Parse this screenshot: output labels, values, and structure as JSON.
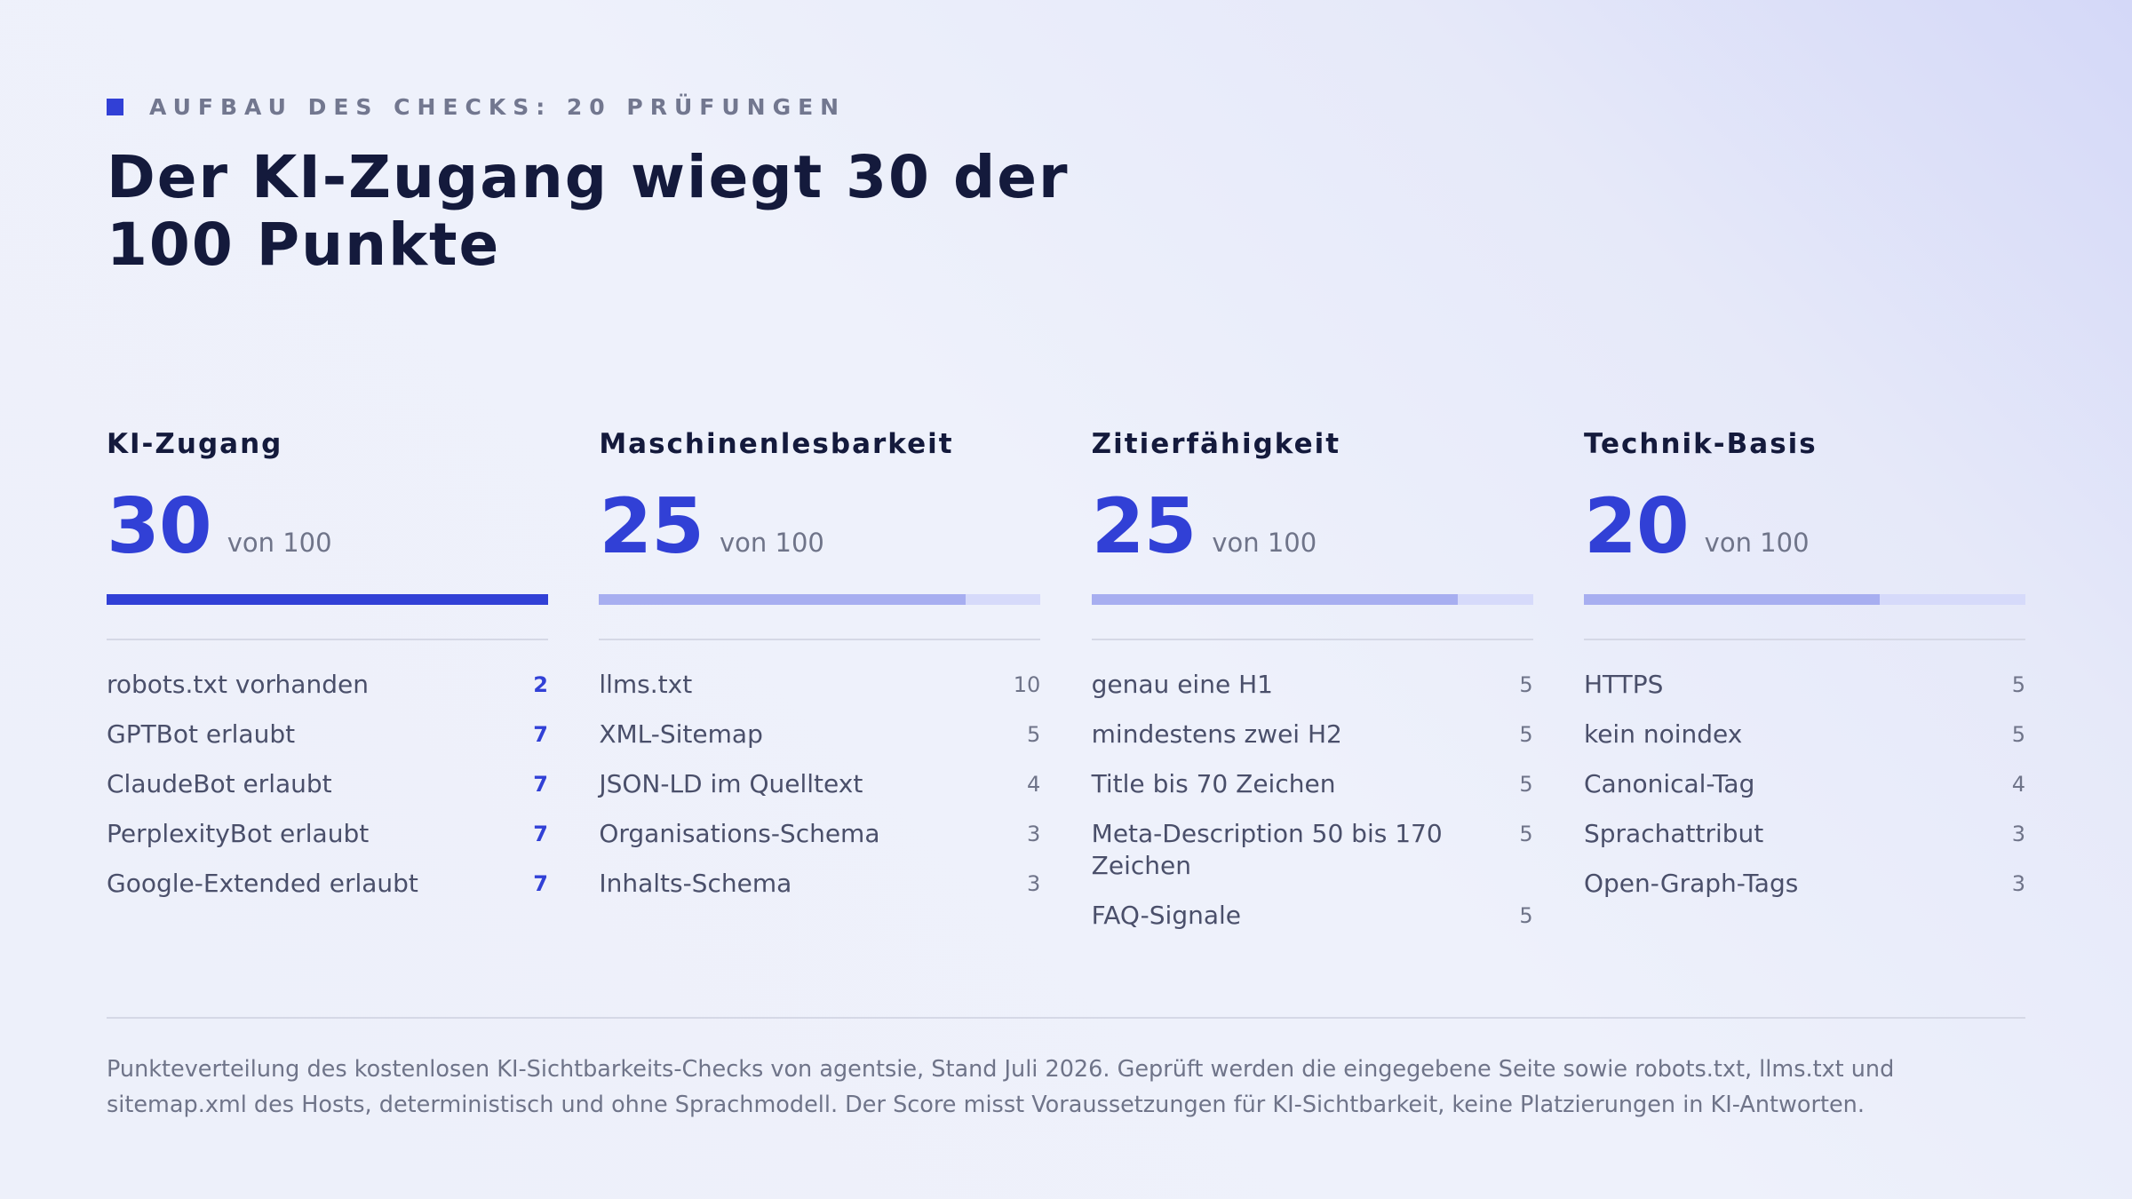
{
  "eyebrow": "AUFBAU DES CHECKS: 20 PRÜFUNGEN",
  "title": "Der KI-Zugang wiegt 30 der 100 Punkte",
  "score_suffix": "von 100",
  "accent_color": "#3140d6",
  "categories": [
    {
      "name": "KI-Zugang",
      "score": "30",
      "max": 100,
      "progress_fraction": 1.0,
      "items": [
        {
          "label": "robots.txt vorhanden",
          "points": "2"
        },
        {
          "label": "GPTBot erlaubt",
          "points": "7"
        },
        {
          "label": "ClaudeBot erlaubt",
          "points": "7"
        },
        {
          "label": "PerplexityBot erlaubt",
          "points": "7"
        },
        {
          "label": "Google-Extended erlaubt",
          "points": "7"
        }
      ]
    },
    {
      "name": "Maschinenlesbarkeit",
      "score": "25",
      "max": 100,
      "progress_fraction": 0.83,
      "items": [
        {
          "label": "llms.txt",
          "points": "10"
        },
        {
          "label": "XML-Sitemap",
          "points": "5"
        },
        {
          "label": "JSON-LD im Quelltext",
          "points": "4"
        },
        {
          "label": "Organisations-Schema",
          "points": "3"
        },
        {
          "label": "Inhalts-Schema",
          "points": "3"
        }
      ]
    },
    {
      "name": "Zitierfähigkeit",
      "score": "25",
      "max": 100,
      "progress_fraction": 0.83,
      "items": [
        {
          "label": "genau eine H1",
          "points": "5"
        },
        {
          "label": "mindestens zwei H2",
          "points": "5"
        },
        {
          "label": "Title bis 70 Zeichen",
          "points": "5"
        },
        {
          "label": "Meta-Description 50 bis 170 Zeichen",
          "points": "5"
        },
        {
          "label": "FAQ-Signale",
          "points": "5"
        }
      ]
    },
    {
      "name": "Technik-Basis",
      "score": "20",
      "max": 100,
      "progress_fraction": 0.67,
      "items": [
        {
          "label": "HTTPS",
          "points": "5"
        },
        {
          "label": "kein noindex",
          "points": "5"
        },
        {
          "label": "Canonical-Tag",
          "points": "4"
        },
        {
          "label": "Sprachattribut",
          "points": "3"
        },
        {
          "label": "Open-Graph-Tags",
          "points": "3"
        }
      ]
    }
  ],
  "footnote": "Punkteverteilung des kostenlosen KI-Sichtbarkeits-Checks von agentsie, Stand Juli 2026. Geprüft werden die eingegebene Seite sowie robots.txt, llms.txt und sitemap.xml des Hosts, deterministisch und ohne Sprachmodell. Der Score misst Voraussetzungen für KI-Sichtbarkeit, keine Platzierungen in KI-Antworten."
}
